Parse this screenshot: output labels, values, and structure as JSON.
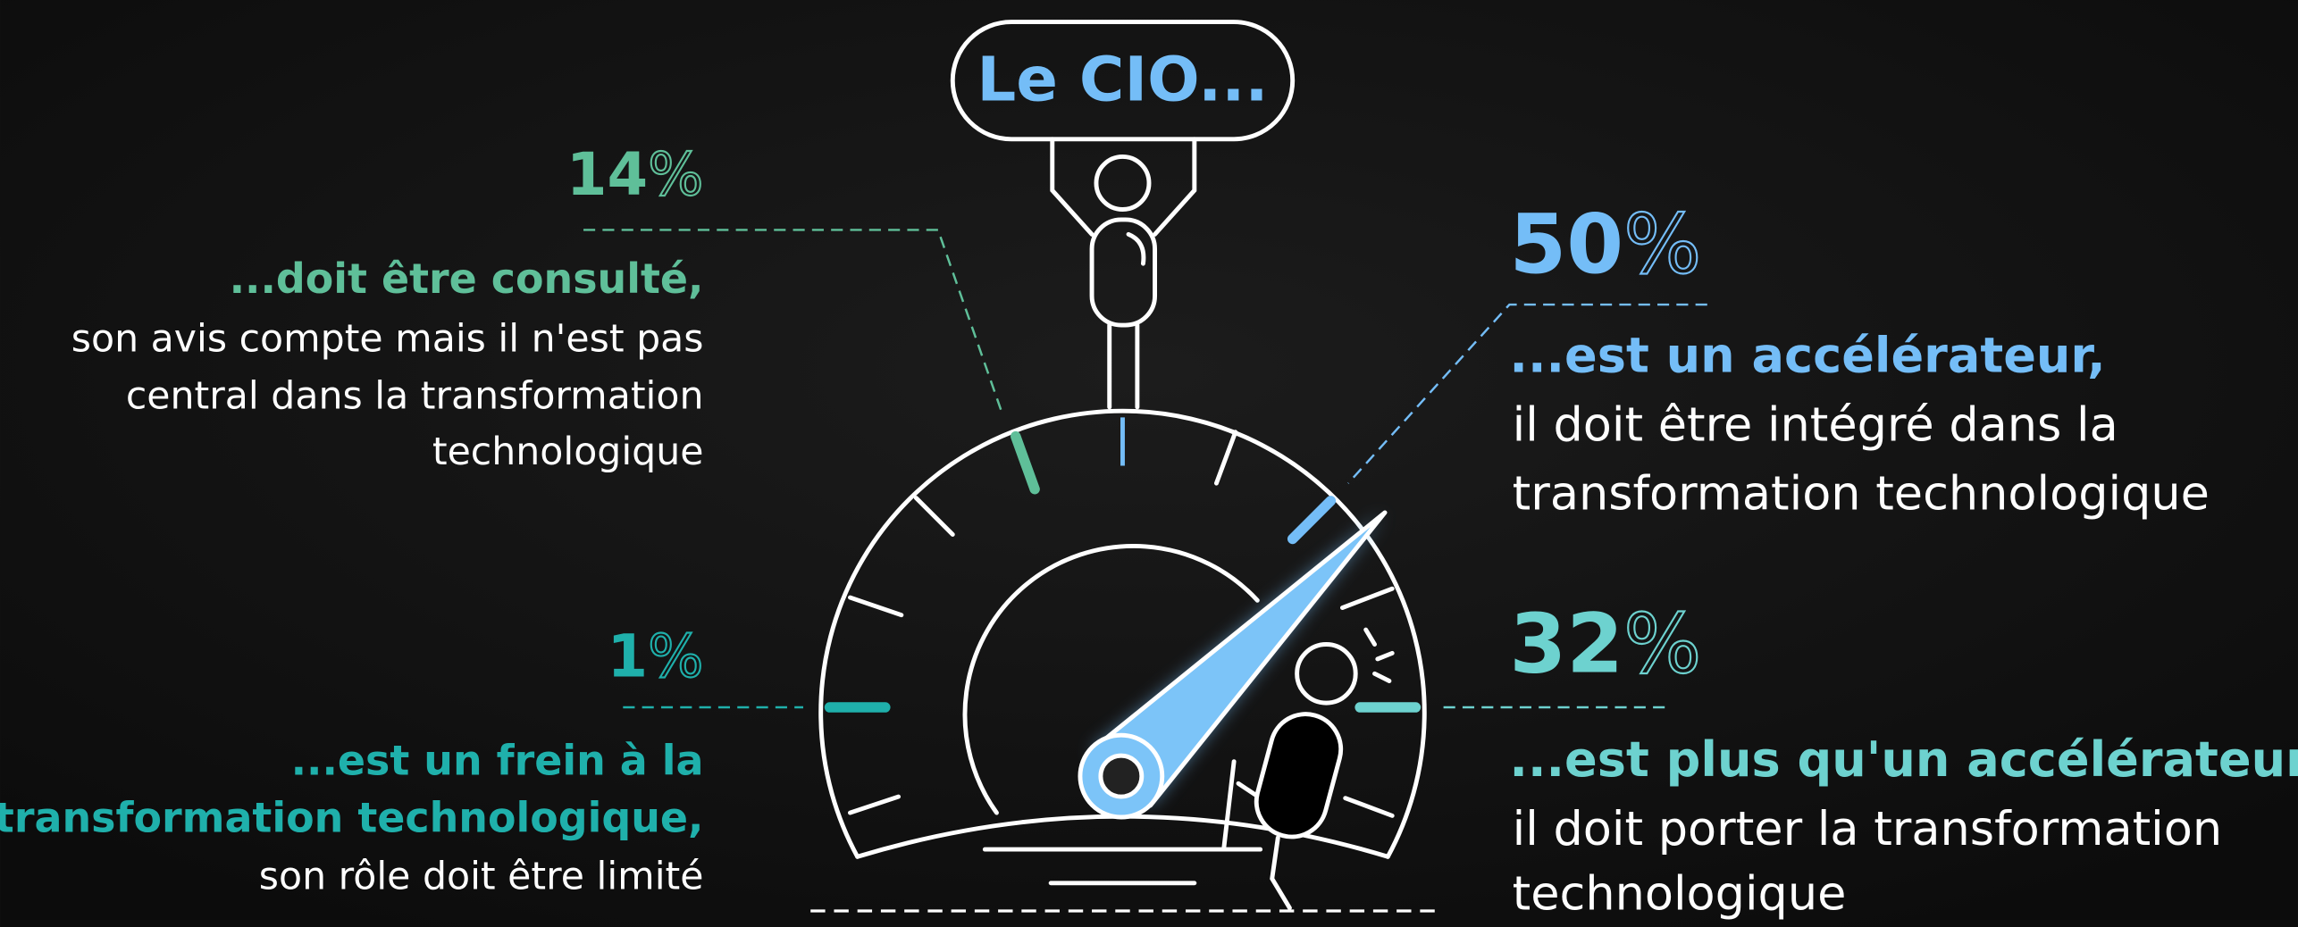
{
  "title": "Le CIO...",
  "items": [
    {
      "value": "14",
      "unit": "%",
      "headline": [
        "...doit être consulté,"
      ],
      "text": [
        "son avis compte mais il n'est pas",
        "central dans la transformation",
        "technologique"
      ]
    },
    {
      "value": "1",
      "unit": "%",
      "headline": [
        "...est un frein à la",
        "transformation technologique,"
      ],
      "text": [
        "son rôle doit être limité"
      ]
    },
    {
      "value": "50",
      "unit": "%",
      "headline": [
        "...est un accélérateur,"
      ],
      "text": [
        "il doit être intégré dans la",
        "transformation technologique"
      ]
    },
    {
      "value": "32",
      "unit": "%",
      "headline": [
        "...est plus qu'un accélérateur,"
      ],
      "text": [
        "il doit porter la transformation",
        "technologique"
      ]
    }
  ]
}
